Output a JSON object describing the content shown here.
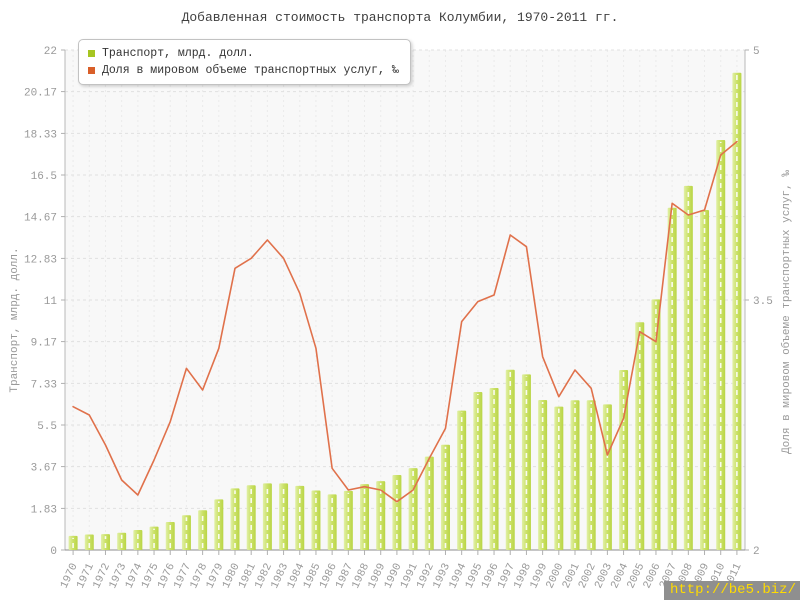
{
  "title": "Добавленная стоимость транспорта Колумбии, 1970-2011 гг.",
  "watermark": "http://be5.biz/",
  "chart_data": {
    "type": "bar",
    "title": "Добавленная стоимость транспорта Колумбии, 1970-2011 гг.",
    "categories": [
      "1970",
      "1971",
      "1972",
      "1973",
      "1974",
      "1975",
      "1976",
      "1977",
      "1978",
      "1979",
      "1980",
      "1981",
      "1982",
      "1983",
      "1984",
      "1985",
      "1986",
      "1987",
      "1988",
      "1989",
      "1990",
      "1991",
      "1992",
      "1993",
      "1994",
      "1995",
      "1996",
      "1997",
      "1998",
      "1999",
      "2000",
      "2001",
      "2002",
      "2003",
      "2004",
      "2005",
      "2006",
      "2007",
      "2008",
      "2009",
      "2010",
      "2011"
    ],
    "series": [
      {
        "name": "Транспорт, млрд. долл.",
        "type": "bar",
        "axis": "left",
        "color": "#a6c521",
        "values": [
          0.62,
          0.68,
          0.7,
          0.76,
          0.88,
          1.03,
          1.23,
          1.53,
          1.75,
          2.23,
          2.71,
          2.85,
          2.93,
          2.93,
          2.82,
          2.62,
          2.45,
          2.6,
          2.9,
          3.03,
          3.3,
          3.6,
          4.11,
          4.63,
          6.13,
          6.95,
          7.13,
          7.93,
          7.73,
          6.6,
          6.31,
          6.59,
          6.59,
          6.41,
          7.92,
          10.02,
          11.03,
          15.06,
          16.02,
          14.96,
          18.04,
          21.0
        ]
      },
      {
        "name": "Доля в мировом объеме транспортных услуг, ‰",
        "type": "line",
        "axis": "right",
        "color": "#d95f29",
        "values": [
          2.86,
          2.81,
          2.63,
          2.42,
          2.33,
          2.54,
          2.77,
          3.09,
          2.96,
          3.21,
          3.69,
          3.75,
          3.86,
          3.75,
          3.54,
          3.21,
          2.49,
          2.36,
          2.38,
          2.36,
          2.29,
          2.36,
          2.55,
          2.73,
          3.37,
          3.49,
          3.53,
          3.89,
          3.82,
          3.16,
          2.92,
          3.08,
          2.97,
          2.57,
          2.79,
          3.31,
          3.25,
          4.08,
          4.01,
          4.04,
          4.37,
          4.45
        ]
      }
    ],
    "left_axis": {
      "label": "Транспорт, млрд. долл.",
      "min": 0,
      "max": 22,
      "tick_labels": [
        "0",
        "1.83",
        "3.67",
        "5.5",
        "7.33",
        "9.17",
        "11",
        "12.83",
        "14.67",
        "16.5",
        "18.33",
        "20.17",
        "22"
      ]
    },
    "right_axis": {
      "label": "Доля в мировом объеме транспортных услуг, ‰",
      "min": 2,
      "max": 5,
      "tick_labels": [
        "2",
        "3.5",
        "5"
      ]
    },
    "grid": "dashed",
    "legend_position": "top-left",
    "colors": {
      "bar_light": "#e1f0a7",
      "bar_mid": "#cbe168",
      "bar_dark": "#b9d545",
      "bar_stripe": "#ffffff",
      "line": "#e0714b",
      "plot_bg": "#f8f8f8",
      "grid": "#e0e0e0",
      "axis_text": "#999999"
    }
  }
}
